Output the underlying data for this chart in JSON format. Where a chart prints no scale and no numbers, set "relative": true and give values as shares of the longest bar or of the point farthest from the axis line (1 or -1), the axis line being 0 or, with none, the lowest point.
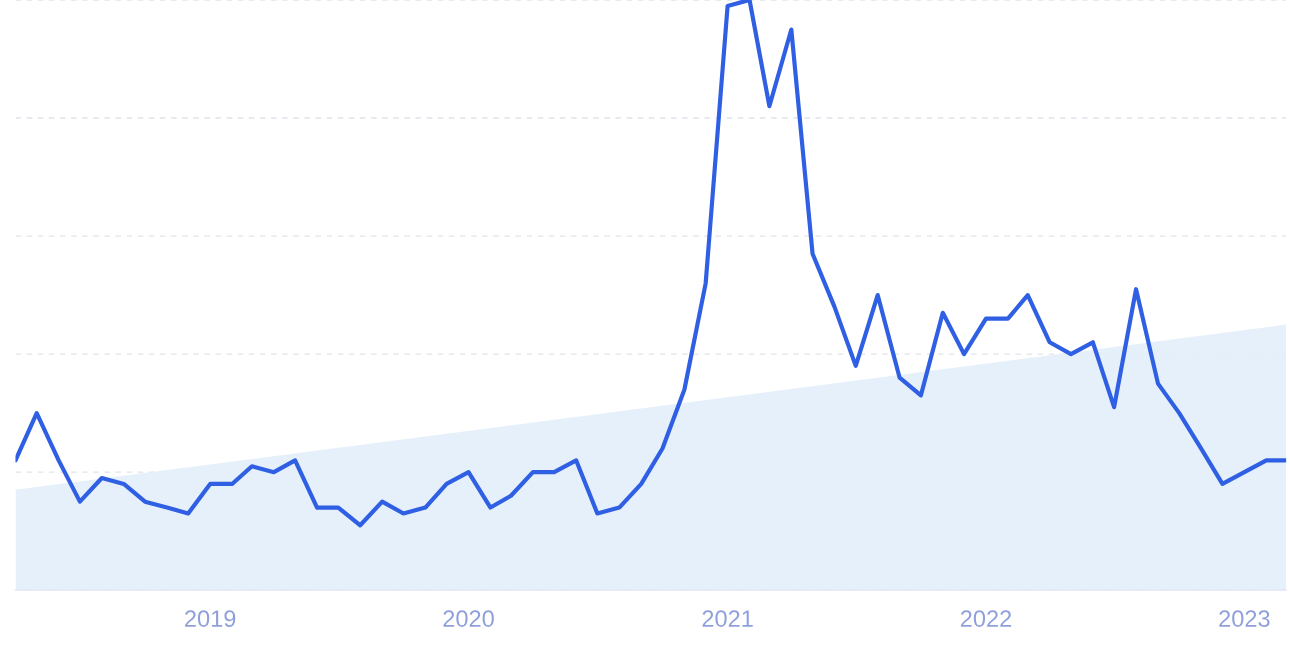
{
  "chart_data": {
    "type": "line",
    "relative": true,
    "grid": "y",
    "tick_labels": "x",
    "legend": false,
    "marker": "none",
    "line_style": "solid",
    "xlim": [
      "2018-04",
      "2023-03"
    ],
    "xticks": [
      {
        "value": "2019-01",
        "label": "2019"
      },
      {
        "value": "2020-01",
        "label": "2020"
      },
      {
        "value": "2021-01",
        "label": "2021"
      },
      {
        "value": "2022-01",
        "label": "2022"
      },
      {
        "value": "2023-01",
        "label": "2023"
      }
    ],
    "series": [
      {
        "type": "area",
        "color": "#e3eefb",
        "x": [
          "2018-04",
          "2023-03"
        ],
        "values": [
          0.17,
          0.45
        ]
      },
      {
        "color": "#2f5fe3",
        "x": [
          "2018-04",
          "2018-05",
          "2018-06",
          "2018-07",
          "2018-08",
          "2018-09",
          "2018-10",
          "2018-11",
          "2018-12",
          "2019-01",
          "2019-02",
          "2019-03",
          "2019-04",
          "2019-05",
          "2019-06",
          "2019-07",
          "2019-08",
          "2019-09",
          "2019-10",
          "2019-11",
          "2019-12",
          "2020-01",
          "2020-02",
          "2020-03",
          "2020-04",
          "2020-05",
          "2020-06",
          "2020-07",
          "2020-08",
          "2020-09",
          "2020-10",
          "2020-11",
          "2020-12",
          "2021-01",
          "2021-02",
          "2021-03",
          "2021-04",
          "2021-05",
          "2021-06",
          "2021-07",
          "2021-08",
          "2021-09",
          "2021-10",
          "2021-11",
          "2021-12",
          "2022-01",
          "2022-02",
          "2022-03",
          "2022-04",
          "2022-05",
          "2022-06",
          "2022-07",
          "2022-08",
          "2022-09",
          "2022-10",
          "2022-11",
          "2022-12",
          "2023-01",
          "2023-02",
          "2023-03"
        ],
        "values": [
          0.22,
          0.3,
          0.22,
          0.15,
          0.19,
          0.18,
          0.15,
          0.14,
          0.13,
          0.18,
          0.18,
          0.21,
          0.2,
          0.22,
          0.14,
          0.14,
          0.11,
          0.15,
          0.13,
          0.14,
          0.18,
          0.2,
          0.14,
          0.16,
          0.2,
          0.2,
          0.22,
          0.13,
          0.14,
          0.18,
          0.24,
          0.34,
          0.52,
          0.99,
          1.0,
          0.82,
          0.95,
          0.57,
          0.48,
          0.38,
          0.5,
          0.36,
          0.33,
          0.47,
          0.4,
          0.46,
          0.46,
          0.5,
          0.42,
          0.4,
          0.42,
          0.31,
          0.51,
          0.35,
          0.3,
          0.24,
          0.18,
          0.2,
          0.22,
          0.22
        ]
      }
    ]
  }
}
